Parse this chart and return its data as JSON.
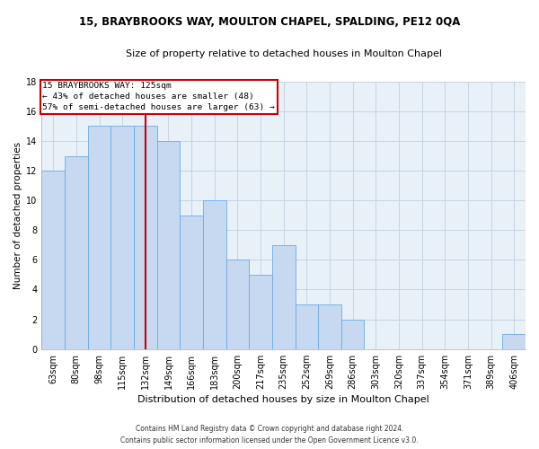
{
  "title1": "15, BRAYBROOKS WAY, MOULTON CHAPEL, SPALDING, PE12 0QA",
  "title2": "Size of property relative to detached houses in Moulton Chapel",
  "xlabel": "Distribution of detached houses by size in Moulton Chapel",
  "ylabel": "Number of detached properties",
  "footnote": "Contains HM Land Registry data © Crown copyright and database right 2024.\nContains public sector information licensed under the Open Government Licence v3.0.",
  "categories": [
    "63sqm",
    "80sqm",
    "98sqm",
    "115sqm",
    "132sqm",
    "149sqm",
    "166sqm",
    "183sqm",
    "200sqm",
    "217sqm",
    "235sqm",
    "252sqm",
    "269sqm",
    "286sqm",
    "303sqm",
    "320sqm",
    "337sqm",
    "354sqm",
    "371sqm",
    "389sqm",
    "406sqm"
  ],
  "values": [
    12,
    13,
    15,
    15,
    15,
    14,
    9,
    10,
    6,
    5,
    7,
    3,
    3,
    2,
    0,
    0,
    0,
    0,
    0,
    0,
    1
  ],
  "bar_color": "#c6d9f0",
  "bar_edge_color": "#6aabe6",
  "grid_color": "#c8d4e4",
  "background_color": "#ffffff",
  "plot_bg_color": "#e8f0f8",
  "property_line_index": 4,
  "property_label": "15 BRAYBROOKS WAY: 125sqm",
  "annotation_line1": "← 43% of detached houses are smaller (48)",
  "annotation_line2": "57% of semi-detached houses are larger (63) →",
  "annotation_box_facecolor": "#ffffff",
  "annotation_box_edgecolor": "#cc0000",
  "red_line_color": "#cc0000",
  "ylim": [
    0,
    18
  ],
  "yticks": [
    0,
    2,
    4,
    6,
    8,
    10,
    12,
    14,
    16,
    18
  ],
  "title1_fontsize": 8.5,
  "title2_fontsize": 8.0,
  "xlabel_fontsize": 8.0,
  "ylabel_fontsize": 7.5,
  "tick_fontsize": 7.0,
  "annot_fontsize": 6.8,
  "footnote_fontsize": 5.5
}
